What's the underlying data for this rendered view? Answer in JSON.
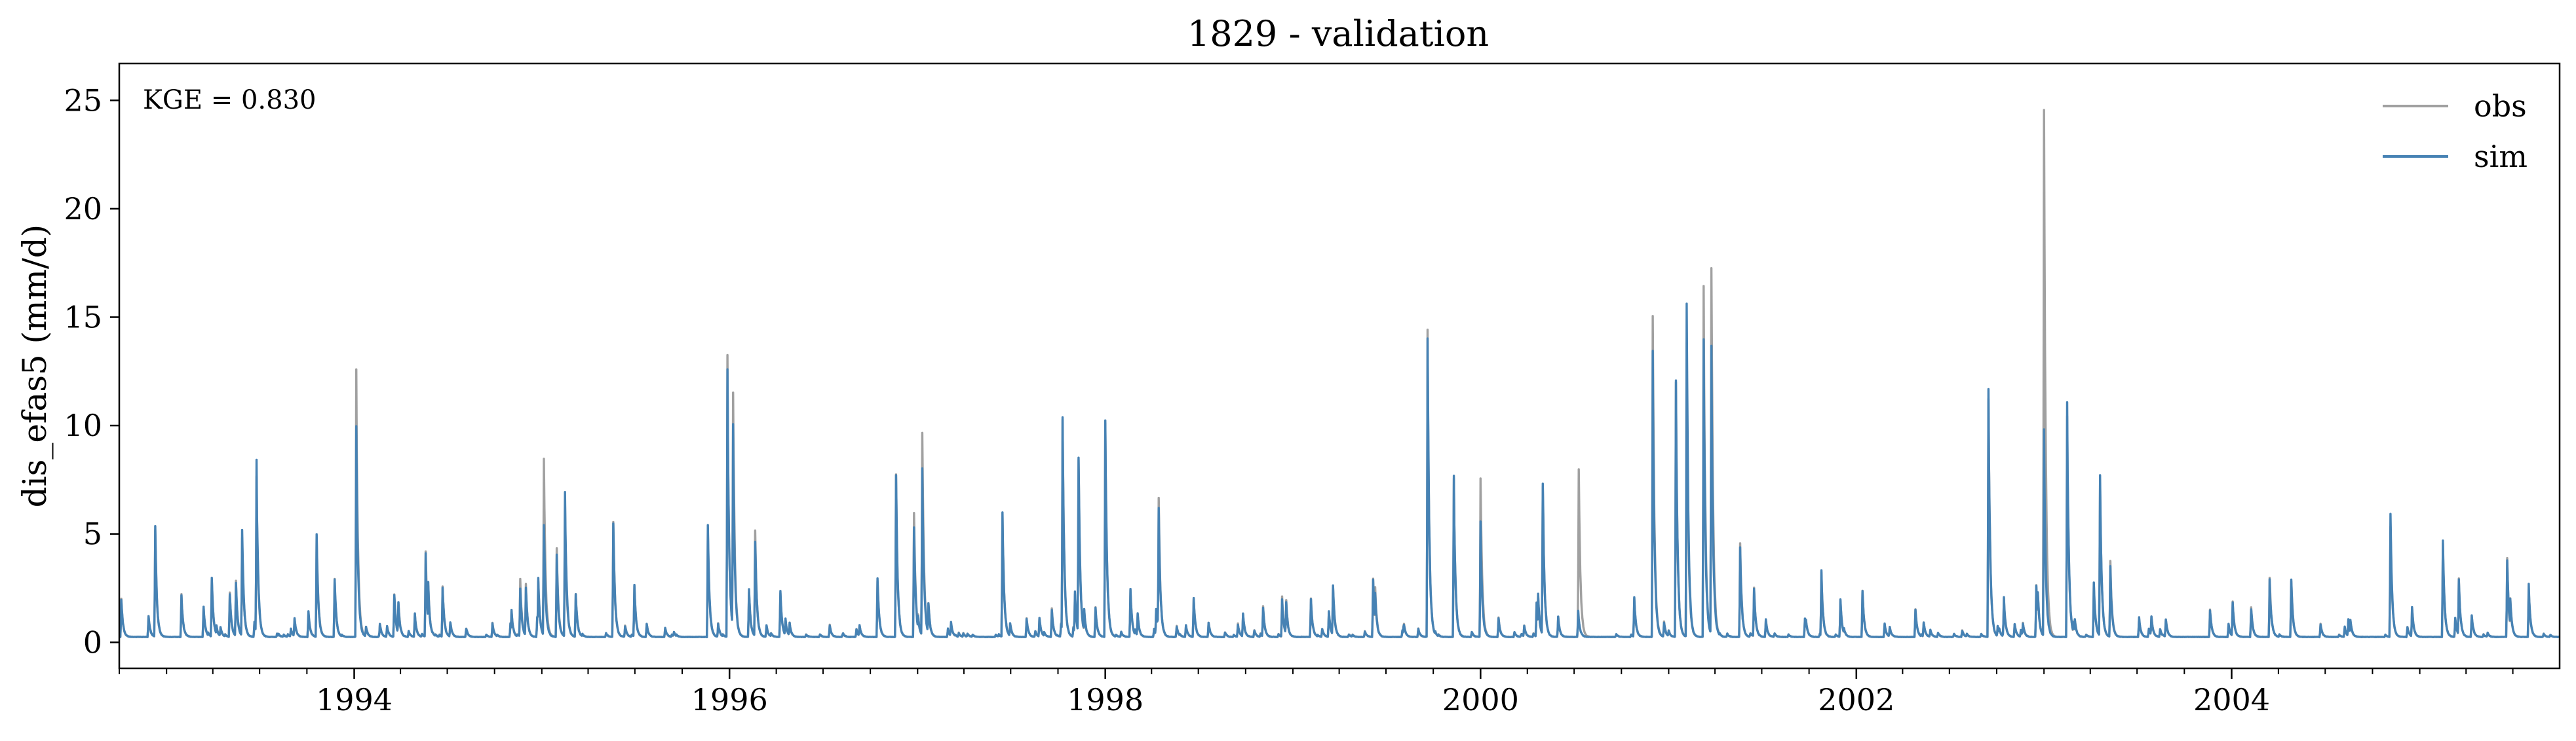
{
  "chart_data": {
    "type": "line",
    "title": "1829 - validation",
    "xlabel": "",
    "ylabel": "dis_efas5 (mm/d)",
    "annotation": "KGE = 0.830",
    "xlim": [
      "1992-10-01",
      "2005-09-30"
    ],
    "ylim": [
      -1.2,
      26.7
    ],
    "x_ticks": [
      {
        "date": "1994-01-01",
        "label": "1994"
      },
      {
        "date": "1996-01-01",
        "label": "1996"
      },
      {
        "date": "1998-01-01",
        "label": "1998"
      },
      {
        "date": "2000-01-01",
        "label": "2000"
      },
      {
        "date": "2002-01-01",
        "label": "2002"
      },
      {
        "date": "2004-01-01",
        "label": "2004"
      }
    ],
    "y_ticks": [
      0,
      5,
      10,
      15,
      20,
      25
    ],
    "grid": false,
    "legend_position": "top-right",
    "baseline": 0.25,
    "series": [
      {
        "name": "obs",
        "color": "#a0a0a0",
        "peaks": [
          [
            "1992-12-10",
            5.0
          ],
          [
            "1993-05-28",
            5.0
          ],
          [
            "1993-06-25",
            7.8
          ],
          [
            "1993-10-20",
            5.1
          ],
          [
            "1994-01-05",
            12.3
          ],
          [
            "1994-05-20",
            4.3
          ],
          [
            "1994-11-20",
            2.9
          ],
          [
            "1995-01-05",
            8.2
          ],
          [
            "1995-01-30",
            4.3
          ],
          [
            "1995-02-15",
            6.5
          ],
          [
            "1995-05-20",
            5.5
          ],
          [
            "1995-11-20",
            5.0
          ],
          [
            "1995-12-28",
            13.0
          ],
          [
            "1996-01-08",
            11.4
          ],
          [
            "1996-02-20",
            5.0
          ],
          [
            "1996-11-20",
            7.5
          ],
          [
            "1996-12-25",
            6.0
          ],
          [
            "1997-01-10",
            9.8
          ],
          [
            "1997-06-15",
            6.0
          ],
          [
            "1997-10-10",
            10.2
          ],
          [
            "1997-11-10",
            8.5
          ],
          [
            "1998-01-01",
            10.3
          ],
          [
            "1998-04-15",
            6.5
          ],
          [
            "1999-06-10",
            2.5
          ],
          [
            "1999-09-20",
            14.0
          ],
          [
            "1999-11-10",
            7.5
          ],
          [
            "2000-01-01",
            7.5
          ],
          [
            "2000-05-01",
            7.4
          ],
          [
            "2000-07-10",
            8.2
          ],
          [
            "2000-12-01",
            15.0
          ],
          [
            "2001-01-15",
            12.0
          ],
          [
            "2001-02-05",
            14.0
          ],
          [
            "2001-03-10",
            16.0
          ],
          [
            "2001-03-25",
            17.8
          ],
          [
            "2001-05-20",
            4.5
          ],
          [
            "2001-10-25",
            3.2
          ],
          [
            "2002-09-15",
            11.5
          ],
          [
            "2003-01-01",
            25.5
          ],
          [
            "2003-02-15",
            10.8
          ],
          [
            "2003-04-20",
            7.5
          ],
          [
            "2003-05-10",
            3.8
          ],
          [
            "2004-03-15",
            3.0
          ],
          [
            "2004-11-05",
            5.5
          ],
          [
            "2005-02-15",
            4.5
          ],
          [
            "2005-06-20",
            3.8
          ],
          [
            "2005-08-01",
            2.5
          ]
        ]
      },
      {
        "name": "sim",
        "color": "#4682b4",
        "peaks": [
          [
            "1992-12-10",
            5.2
          ],
          [
            "1993-05-28",
            5.2
          ],
          [
            "1993-06-25",
            8.1
          ],
          [
            "1993-10-20",
            4.8
          ],
          [
            "1994-01-05",
            10.1
          ],
          [
            "1994-05-20",
            4.0
          ],
          [
            "1994-11-20",
            2.5
          ],
          [
            "1995-01-05",
            5.6
          ],
          [
            "1995-01-30",
            4.0
          ],
          [
            "1995-02-15",
            6.9
          ],
          [
            "1995-05-20",
            5.6
          ],
          [
            "1995-11-20",
            5.2
          ],
          [
            "1995-12-28",
            12.8
          ],
          [
            "1996-01-08",
            10.0
          ],
          [
            "1996-02-20",
            4.8
          ],
          [
            "1996-11-20",
            7.7
          ],
          [
            "1996-12-25",
            5.3
          ],
          [
            "1997-01-10",
            8.3
          ],
          [
            "1997-06-15",
            6.1
          ],
          [
            "1997-10-10",
            10.3
          ],
          [
            "1997-11-10",
            8.8
          ],
          [
            "1998-01-01",
            10.5
          ],
          [
            "1998-04-15",
            6.4
          ],
          [
            "1999-06-10",
            2.3
          ],
          [
            "1999-09-20",
            14.1
          ],
          [
            "1999-11-10",
            7.6
          ],
          [
            "2000-01-01",
            5.5
          ],
          [
            "2000-05-01",
            7.6
          ],
          [
            "2000-07-10",
            0.6
          ],
          [
            "2000-12-01",
            13.0
          ],
          [
            "2001-01-15",
            12.1
          ],
          [
            "2001-02-05",
            15.8
          ],
          [
            "2001-03-10",
            14.1
          ],
          [
            "2001-03-25",
            13.7
          ],
          [
            "2001-05-20",
            4.3
          ],
          [
            "2001-10-25",
            3.2
          ],
          [
            "2002-09-15",
            11.6
          ],
          [
            "2003-01-01",
            9.8
          ],
          [
            "2003-02-15",
            11.0
          ],
          [
            "2003-04-20",
            7.7
          ],
          [
            "2003-05-10",
            3.5
          ],
          [
            "2004-03-15",
            2.8
          ],
          [
            "2004-11-05",
            5.8
          ],
          [
            "2005-02-15",
            4.6
          ],
          [
            "2005-06-20",
            3.9
          ],
          [
            "2005-08-01",
            2.6
          ]
        ]
      }
    ]
  }
}
